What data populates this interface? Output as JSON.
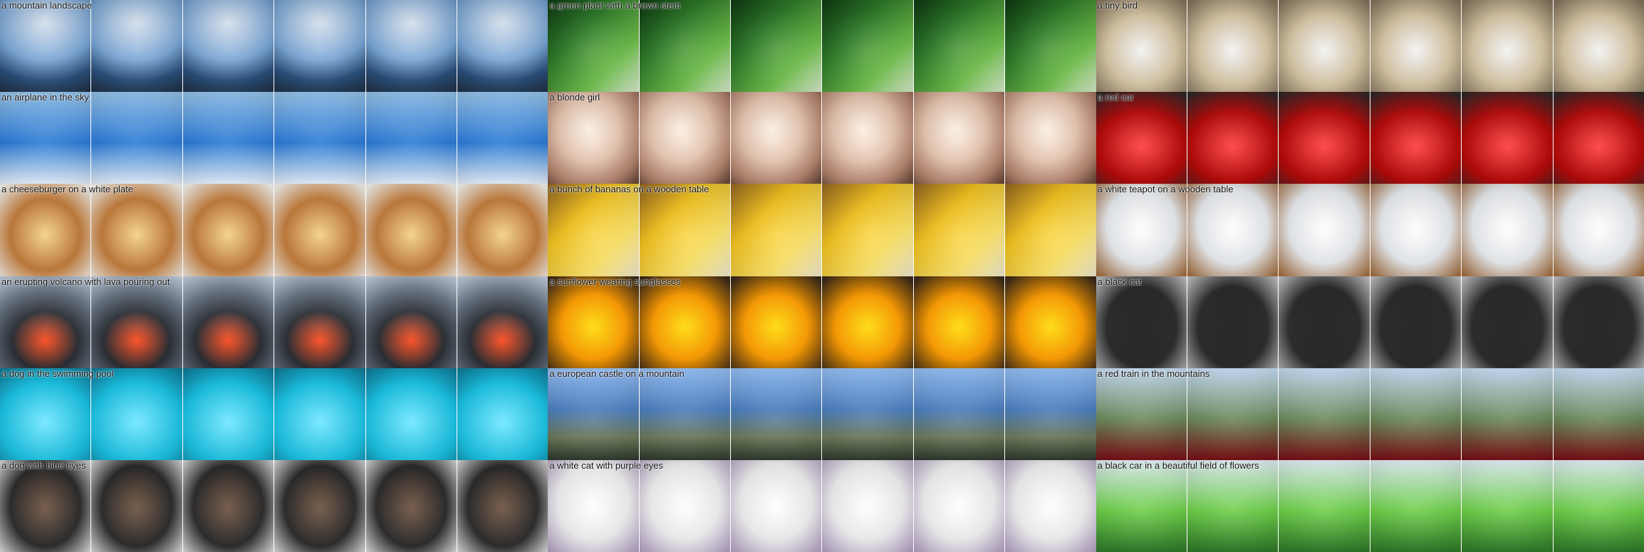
{
  "grid": {
    "captions": [
      "a mountain landscape",
      "a green plant with a brown stem",
      "a tiny bird",
      "an airplane in the sky",
      "a blonde girl",
      "a red car",
      "a cheeseburger on a white plate",
      "a bunch of bananas on a wooden table",
      "a white teapot on a wooden table",
      "an erupting volcano with lava pouring out",
      "a sunflower wearing sunglasses",
      "a black cat",
      "a dog in the swimming pool",
      "a european castle on a mountain",
      "a red train in the mountains",
      "a dog with blue eyes",
      "a white cat with purple eyes",
      "a black car in a beautiful field of flowers"
    ]
  }
}
